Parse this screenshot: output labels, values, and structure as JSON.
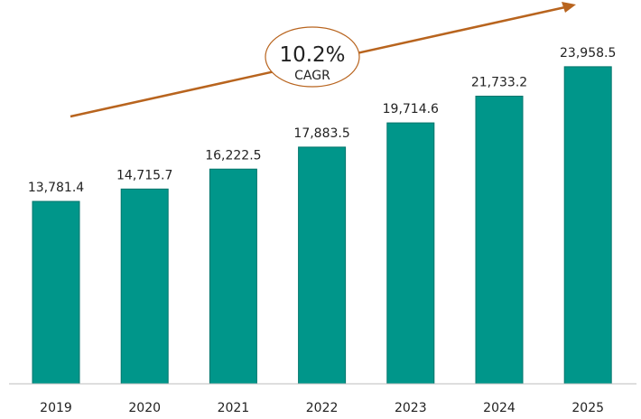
{
  "chart_data": {
    "type": "bar",
    "categories": [
      "2019",
      "2020",
      "2021",
      "2022",
      "2023",
      "2024",
      "2025"
    ],
    "values": [
      13781.4,
      14715.7,
      16222.5,
      17883.5,
      19714.6,
      21733.2,
      23958.5
    ],
    "value_labels": [
      "13,781.4",
      "14,715.7",
      "16,222.5",
      "17,883.5",
      "19,714.6",
      "21,733.2",
      "23,958.5"
    ],
    "title": "",
    "xlabel": "",
    "ylabel": "",
    "ylim": [
      0,
      29000
    ],
    "grid": false,
    "annotation": {
      "value": "10.2%",
      "label": "CAGR"
    },
    "colors": {
      "bar": "#00968a",
      "bar_border": "#00756c",
      "arrow": "#b8641e",
      "axis": "#bdbdbd"
    }
  }
}
